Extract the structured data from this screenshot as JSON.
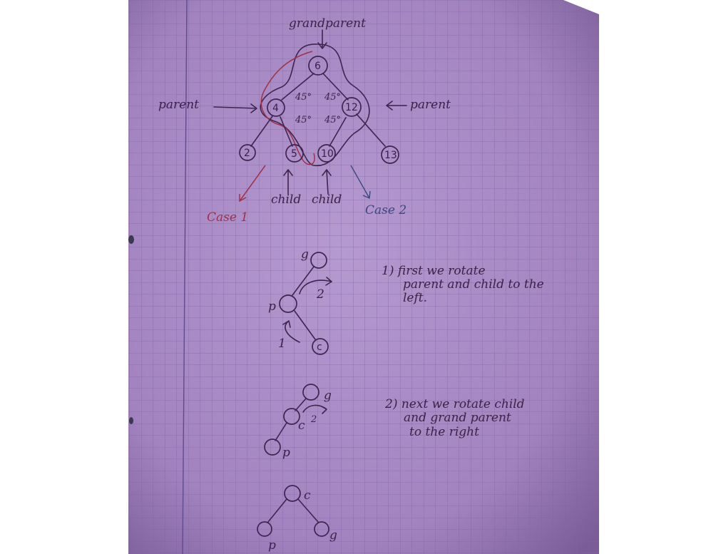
{
  "colors": {
    "paper": "#a889c4",
    "grid": "#7d65a6",
    "ink": "#3d2550",
    "red_ink": "#a03045",
    "blue_ink": "#3a4a80"
  },
  "labels": {
    "grandparent": "grandparent",
    "parent_left": "parent",
    "parent_right": "parent",
    "child_left": "child",
    "child_right": "child",
    "case1": "Case 1",
    "case2": "Case 2",
    "angle": "45°"
  },
  "tree": {
    "root": "6",
    "left": "4",
    "right": "12",
    "ll": "2",
    "lr": "5",
    "rl": "10",
    "rr": "13"
  },
  "step1": {
    "g": "g",
    "p": "p",
    "c": "c",
    "arrow1": "1",
    "arrow2": "2",
    "note": [
      "1) first we rotate",
      "parent and child to the",
      "left."
    ]
  },
  "step2": {
    "g": "g",
    "c": "c",
    "p": "p",
    "arrow2": "2",
    "note": [
      "2) next we rotate child",
      "and grand parent",
      "to the right"
    ]
  },
  "step3": {
    "c": "c",
    "p": "p",
    "g": "g"
  }
}
